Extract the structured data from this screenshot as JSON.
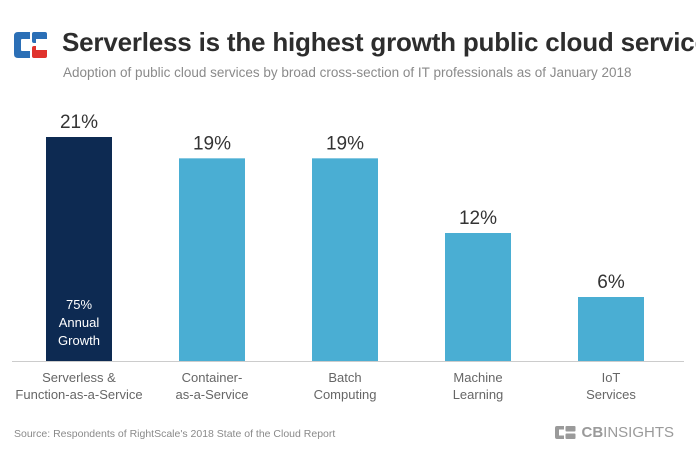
{
  "header": {
    "title": "Serverless is the highest growth public cloud service",
    "subtitle": "Adoption of public cloud services by broad cross-section of IT professionals as of January 2018"
  },
  "footer": {
    "source": "Source: Respondents of RightScale's 2018 State of the Cloud Report",
    "brand_bold": "CB",
    "brand_light": "INSIGHTS"
  },
  "colors": {
    "highlight": "#0d2a52",
    "bar": "#4aaed3",
    "logo_blue": "#2b6fb6",
    "logo_red": "#e0322c",
    "axis": "#cccccc"
  },
  "icons": {
    "logo": "cb-insights-logo-icon",
    "brand": "cb-insights-brand-icon"
  },
  "chart_data": {
    "type": "bar",
    "title": "Serverless is the highest growth public cloud service",
    "subtitle": "Adoption of public cloud services by broad cross-section of IT professionals as of January 2018",
    "categories": [
      [
        "Serverless &",
        "Function-as-a-Service"
      ],
      [
        "Container-",
        "as-a-Service"
      ],
      [
        "Batch",
        "Computing"
      ],
      [
        "Machine",
        "Learning"
      ],
      [
        "IoT",
        "Services"
      ]
    ],
    "values": [
      21,
      19,
      19,
      12,
      6
    ],
    "value_labels": [
      "21%",
      "19%",
      "19%",
      "12%",
      "6%"
    ],
    "highlight_index": 0,
    "annotation": [
      "75%",
      "Annual",
      "Growth"
    ],
    "ylim": [
      0,
      21
    ],
    "grid": false,
    "legend": "none"
  }
}
